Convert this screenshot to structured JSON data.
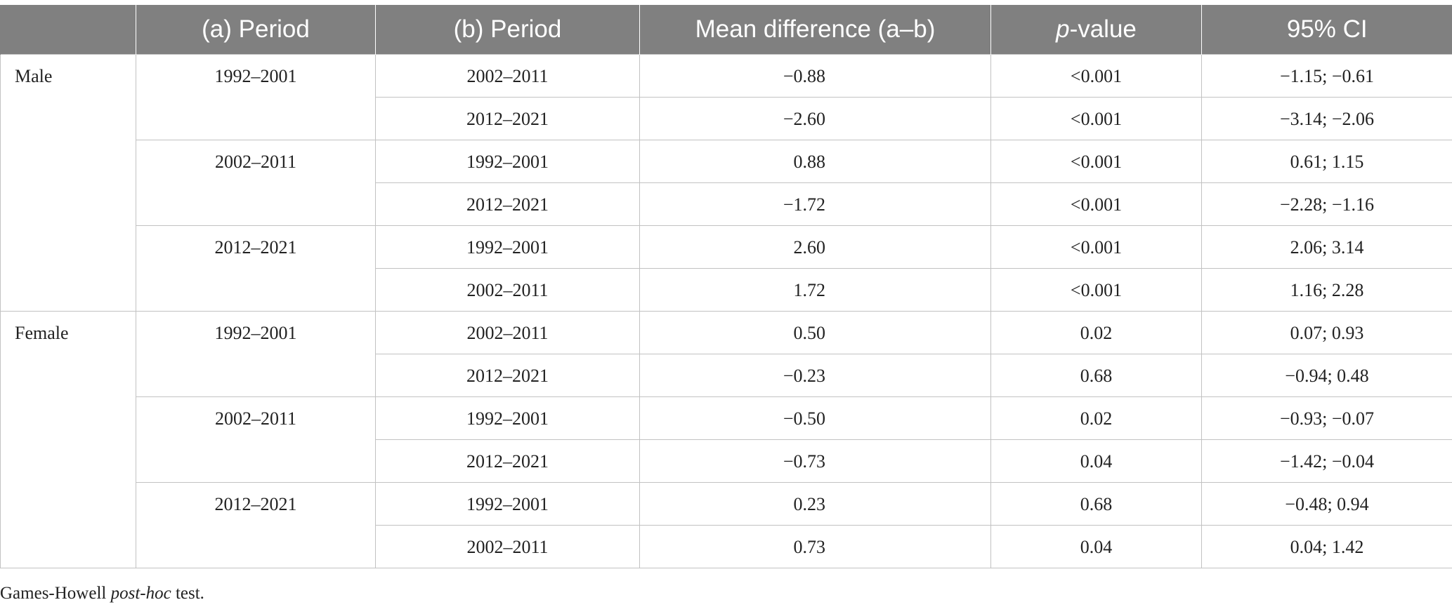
{
  "header": {
    "col0": "",
    "col1": "(a) Period",
    "col2": "(b) Period",
    "col3": "Mean difference (a–b)",
    "col4_italic": "p",
    "col4_rest": "-value",
    "col5": "95% CI"
  },
  "groups": [
    {
      "gender": "Male",
      "blocks": [
        {
          "period_a": "1992–2001",
          "rows": [
            {
              "period_b": "2002–2011",
              "mean": "−0.88",
              "p": "<0.001",
              "ci": "−1.15; −0.61"
            },
            {
              "period_b": "2012–2021",
              "mean": "−2.60",
              "p": "<0.001",
              "ci": "−3.14; −2.06"
            }
          ]
        },
        {
          "period_a": "2002–2011",
          "rows": [
            {
              "period_b": "1992–2001",
              "mean": "0.88",
              "p": "<0.001",
              "ci": "0.61; 1.15"
            },
            {
              "period_b": "2012–2021",
              "mean": "−1.72",
              "p": "<0.001",
              "ci": "−2.28; −1.16"
            }
          ]
        },
        {
          "period_a": "2012–2021",
          "rows": [
            {
              "period_b": "1992–2001",
              "mean": "2.60",
              "p": "<0.001",
              "ci": "2.06; 3.14"
            },
            {
              "period_b": "2002–2011",
              "mean": "1.72",
              "p": "<0.001",
              "ci": "1.16; 2.28"
            }
          ]
        }
      ]
    },
    {
      "gender": "Female",
      "blocks": [
        {
          "period_a": "1992–2001",
          "rows": [
            {
              "period_b": "2002–2011",
              "mean": "0.50",
              "p": "0.02",
              "ci": "0.07; 0.93"
            },
            {
              "period_b": "2012–2021",
              "mean": "−0.23",
              "p": "0.68",
              "ci": "−0.94; 0.48"
            }
          ]
        },
        {
          "period_a": "2002–2011",
          "rows": [
            {
              "period_b": "1992–2001",
              "mean": "−0.50",
              "p": "0.02",
              "ci": "−0.93; −0.07"
            },
            {
              "period_b": "2012–2021",
              "mean": "−0.73",
              "p": "0.04",
              "ci": "−1.42; −0.04"
            }
          ]
        },
        {
          "period_a": "2012–2021",
          "rows": [
            {
              "period_b": "1992–2001",
              "mean": "0.23",
              "p": "0.68",
              "ci": "−0.48; 0.94"
            },
            {
              "period_b": "2002–2011",
              "mean": "0.73",
              "p": "0.04",
              "ci": "0.04; 1.42"
            }
          ]
        }
      ]
    }
  ],
  "footnote": {
    "prefix": "Games-Howell ",
    "italic": "post-hoc",
    "suffix": " test."
  }
}
